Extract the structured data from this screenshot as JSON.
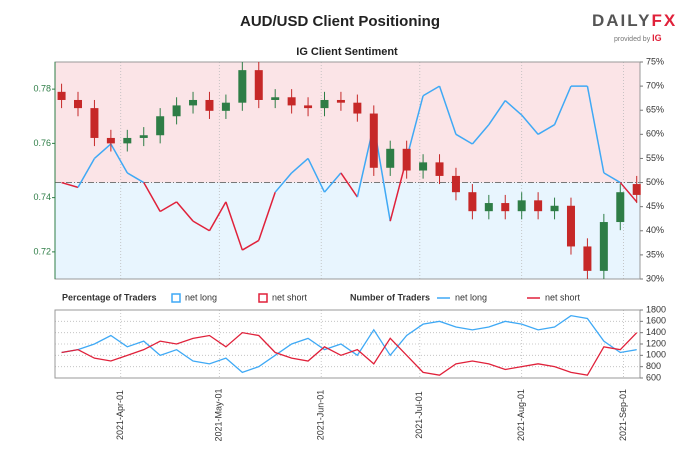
{
  "logo": {
    "brand": "DAILY",
    "brand_accent": "FX",
    "tagline": "provided by",
    "tagline_brand": "IG"
  },
  "chart_data": [
    {
      "type": "candlestick",
      "title": "AUD/USD Client Positioning",
      "subtitle": "IG Client Sentiment",
      "x": [
        "2021-03-14",
        "2021-03-19",
        "2021-03-24",
        "2021-03-29",
        "2021-04-03",
        "2021-04-08",
        "2021-04-13",
        "2021-04-18",
        "2021-04-23",
        "2021-04-28",
        "2021-05-03",
        "2021-05-08",
        "2021-05-13",
        "2021-05-18",
        "2021-05-23",
        "2021-05-28",
        "2021-06-02",
        "2021-06-07",
        "2021-06-12",
        "2021-06-17",
        "2021-06-22",
        "2021-06-27",
        "2021-07-02",
        "2021-07-07",
        "2021-07-12",
        "2021-07-17",
        "2021-07-22",
        "2021-07-27",
        "2021-08-01",
        "2021-08-06",
        "2021-08-11",
        "2021-08-16",
        "2021-08-21",
        "2021-08-26",
        "2021-08-31",
        "2021-09-05"
      ],
      "open": [
        0.779,
        0.776,
        0.773,
        0.762,
        0.76,
        0.762,
        0.763,
        0.77,
        0.774,
        0.776,
        0.772,
        0.775,
        0.787,
        0.776,
        0.777,
        0.774,
        0.773,
        0.776,
        0.775,
        0.771,
        0.751,
        0.758,
        0.75,
        0.753,
        0.748,
        0.742,
        0.735,
        0.738,
        0.735,
        0.739,
        0.735,
        0.737,
        0.722,
        0.713,
        0.731,
        0.745
      ],
      "high": [
        0.782,
        0.779,
        0.776,
        0.765,
        0.765,
        0.766,
        0.773,
        0.777,
        0.779,
        0.779,
        0.778,
        0.79,
        0.79,
        0.78,
        0.78,
        0.777,
        0.779,
        0.779,
        0.778,
        0.774,
        0.761,
        0.761,
        0.756,
        0.756,
        0.751,
        0.745,
        0.741,
        0.741,
        0.742,
        0.742,
        0.74,
        0.74,
        0.725,
        0.734,
        0.745,
        0.748
      ],
      "low": [
        0.773,
        0.77,
        0.759,
        0.757,
        0.757,
        0.759,
        0.76,
        0.767,
        0.771,
        0.769,
        0.769,
        0.772,
        0.773,
        0.773,
        0.771,
        0.77,
        0.77,
        0.772,
        0.768,
        0.748,
        0.748,
        0.747,
        0.747,
        0.745,
        0.739,
        0.732,
        0.732,
        0.732,
        0.732,
        0.732,
        0.732,
        0.719,
        0.71,
        0.71,
        0.728,
        0.738
      ],
      "close": [
        0.776,
        0.773,
        0.762,
        0.76,
        0.762,
        0.763,
        0.77,
        0.774,
        0.776,
        0.772,
        0.775,
        0.787,
        0.776,
        0.777,
        0.774,
        0.773,
        0.776,
        0.775,
        0.771,
        0.751,
        0.758,
        0.75,
        0.753,
        0.748,
        0.742,
        0.735,
        0.738,
        0.735,
        0.739,
        0.735,
        0.737,
        0.722,
        0.713,
        0.731,
        0.742,
        0.741
      ],
      "up_color": "#2e7d46",
      "down_color": "#c62828",
      "xlim": [
        "2021-03-12",
        "2021-09-06"
      ],
      "xticks": [
        {
          "value": "2021-04-01",
          "label": "2021-Apr-01"
        },
        {
          "value": "2021-05-01",
          "label": "2021-May-01"
        },
        {
          "value": "2021-06-01",
          "label": "2021-Jun-01"
        },
        {
          "value": "2021-07-01",
          "label": "2021-Jul-01"
        },
        {
          "value": "2021-08-01",
          "label": "2021-Aug-01"
        },
        {
          "value": "2021-09-01",
          "label": "2021-Sep-01"
        }
      ],
      "ylim": [
        0.71,
        0.79
      ],
      "yticks": [
        0.72,
        0.74,
        0.76,
        0.78
      ],
      "y2lim": [
        30,
        75
      ],
      "y2ticks": [
        {
          "value": 30,
          "label": "30%"
        },
        {
          "value": 35,
          "label": "35%"
        },
        {
          "value": 40,
          "label": "40%"
        },
        {
          "value": 45,
          "label": "45%"
        },
        {
          "value": 50,
          "label": "50%"
        },
        {
          "value": 55,
          "label": "55%"
        },
        {
          "value": 60,
          "label": "60%"
        },
        {
          "value": 65,
          "label": "65%"
        },
        {
          "value": 70,
          "label": "70%"
        },
        {
          "value": 75,
          "label": "75%"
        }
      ],
      "legend_title": "Percentage of Traders",
      "series": [
        {
          "name": "net long",
          "color": "#3fa9f5",
          "short_name": "net short",
          "short_color": "#e0213a",
          "axis": "y2",
          "values": [
            50,
            49,
            55,
            58,
            52,
            50,
            44,
            46,
            42,
            40,
            46,
            36,
            38,
            48,
            52,
            55,
            48,
            52,
            47,
            62,
            42,
            55,
            68,
            70,
            60,
            58,
            62,
            67,
            64,
            60,
            62,
            70,
            70,
            52,
            50,
            46
          ]
        }
      ],
      "grid": true
    },
    {
      "type": "line",
      "legend_title": "Number of Traders",
      "series": [
        {
          "name": "net long",
          "color": "#3fa9f5",
          "axis": "y2",
          "values": [
            1050,
            1100,
            1200,
            1350,
            1150,
            1250,
            1000,
            1100,
            900,
            850,
            950,
            700,
            800,
            1000,
            1200,
            1300,
            1100,
            1200,
            1000,
            1450,
            1000,
            1350,
            1550,
            1600,
            1500,
            1450,
            1500,
            1600,
            1550,
            1450,
            1500,
            1700,
            1650,
            1250,
            1050,
            1100
          ]
        },
        {
          "name": "net short",
          "color": "#e0213a",
          "axis": "y2",
          "values": [
            1050,
            1100,
            950,
            900,
            1000,
            1100,
            1250,
            1200,
            1300,
            1350,
            1150,
            1400,
            1350,
            1050,
            950,
            900,
            1150,
            1000,
            1100,
            850,
            1300,
            1000,
            700,
            650,
            850,
            900,
            850,
            750,
            800,
            850,
            800,
            700,
            650,
            1150,
            1100,
            1400
          ]
        }
      ],
      "y2lim": [
        600,
        1800
      ],
      "y2ticks": [
        600,
        800,
        1000,
        1200,
        1400,
        1600,
        1800
      ],
      "grid": true
    }
  ]
}
